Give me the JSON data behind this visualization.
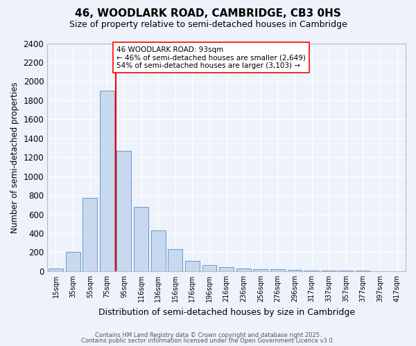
{
  "title": "46, WOODLARK ROAD, CAMBRIDGE, CB3 0HS",
  "subtitle": "Size of property relative to semi-detached houses in Cambridge",
  "xlabel": "Distribution of semi-detached houses by size in Cambridge",
  "ylabel": "Number of semi-detached properties",
  "bar_color": "#c8d8ef",
  "bar_edge_color": "#6699cc",
  "background_color": "#eef2fb",
  "grid_color": "#ffffff",
  "categories": [
    "15sqm",
    "35sqm",
    "55sqm",
    "75sqm",
    "95sqm",
    "116sqm",
    "136sqm",
    "156sqm",
    "176sqm",
    "196sqm",
    "216sqm",
    "236sqm",
    "256sqm",
    "276sqm",
    "296sqm",
    "317sqm",
    "337sqm",
    "357sqm",
    "377sqm",
    "397sqm",
    "417sqm"
  ],
  "values": [
    25,
    200,
    770,
    1900,
    1270,
    680,
    430,
    230,
    110,
    65,
    45,
    30,
    20,
    20,
    15,
    10,
    5,
    5,
    5,
    2,
    2
  ],
  "property_line_bin": 3,
  "annotation_title": "46 WOODLARK ROAD: 93sqm",
  "annotation_line1": "← 46% of semi-detached houses are smaller (2,649)",
  "annotation_line2": "54% of semi-detached houses are larger (3,103) →",
  "ylim": [
    0,
    2400
  ],
  "yticks": [
    0,
    200,
    400,
    600,
    800,
    1000,
    1200,
    1400,
    1600,
    1800,
    2000,
    2200,
    2400
  ],
  "footer1": "Contains HM Land Registry data © Crown copyright and database right 2025.",
  "footer2": "Contains public sector information licensed under the Open Government Licence v3.0."
}
